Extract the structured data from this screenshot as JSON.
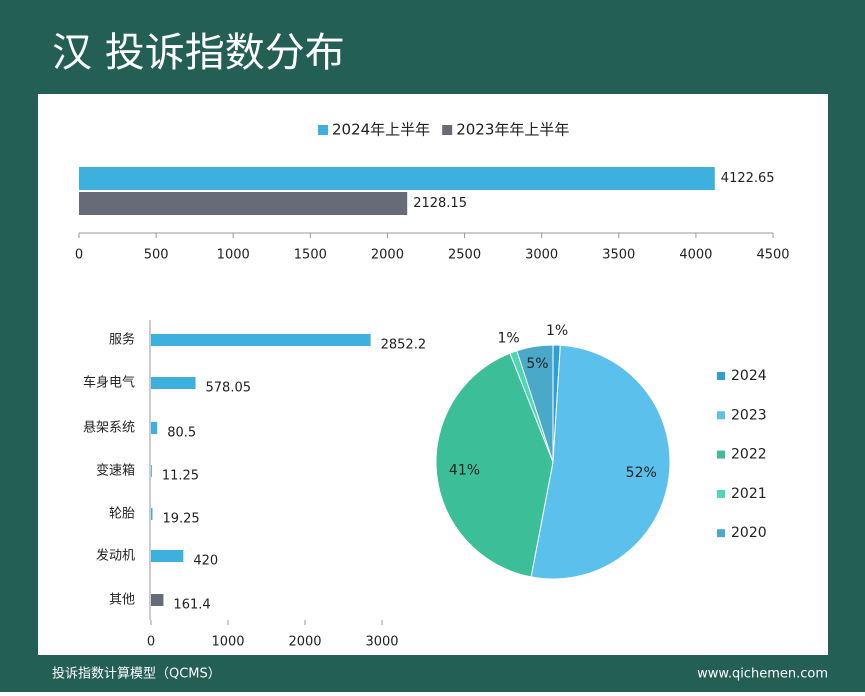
{
  "header": {
    "title": "汉 投诉指数分布"
  },
  "footer": {
    "left": "投诉指数计算模型（QCMS）",
    "right": "www.qichemen.com"
  },
  "chart_data": [
    {
      "type": "hbar",
      "series": [
        {
          "name": "2024年上半年",
          "color": "#3eb0de",
          "values": [
            4122.65
          ]
        },
        {
          "name": "2023年年上半年",
          "color": "#666b77",
          "values": [
            2128.15
          ]
        }
      ],
      "xlim": [
        0,
        4500
      ],
      "xticks": [
        0,
        500,
        1000,
        1500,
        2000,
        2500,
        3000,
        3500,
        4000,
        4500
      ],
      "legend": "top"
    },
    {
      "type": "hbar",
      "categories": [
        "服务",
        "车身电气",
        "悬架系统",
        "变速箱",
        "轮胎",
        "发动机",
        "其他"
      ],
      "values": [
        2852.2,
        578.05,
        80.5,
        11.25,
        19.25,
        420,
        161.4
      ],
      "colors": [
        "#3eb0de",
        "#3eb0de",
        "#3eb0de",
        "#3eb0de",
        "#3eb0de",
        "#3eb0de",
        "#666b77"
      ],
      "xlim": [
        0,
        3000
      ],
      "xticks": [
        0,
        1000,
        2000,
        3000
      ]
    },
    {
      "type": "pie",
      "categories": [
        "2024",
        "2023",
        "2022",
        "2021",
        "2020"
      ],
      "values": [
        1,
        52,
        41,
        1,
        5
      ],
      "value_labels": [
        "1%",
        "52%",
        "41%",
        "1%",
        "5%"
      ],
      "colors": [
        "#2e9fd6",
        "#5bc0eb",
        "#3cbf98",
        "#4fd6b4",
        "#4aa8c8"
      ],
      "legend": "right"
    }
  ]
}
